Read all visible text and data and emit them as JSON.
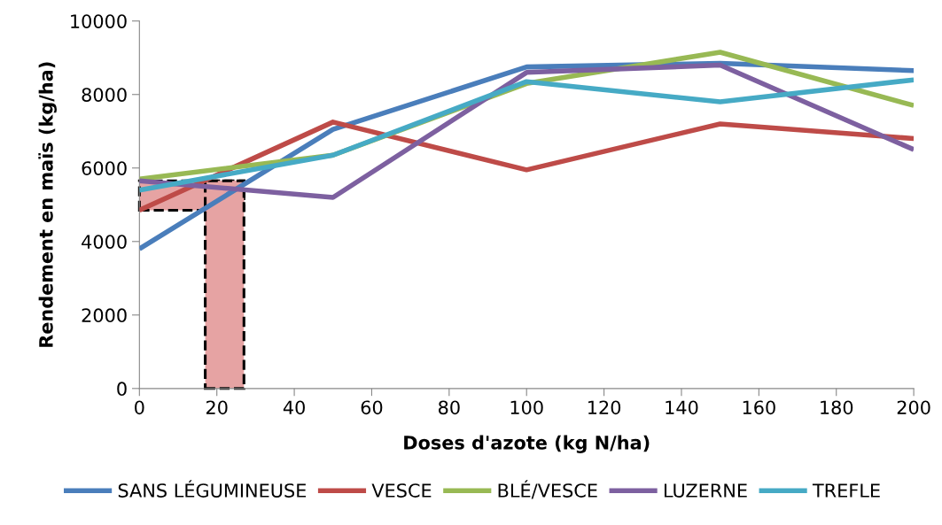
{
  "chart_data": {
    "type": "line",
    "xlabel": "Doses d'azote (kg N/ha)",
    "ylabel": "Rendement en maïs (kg/ha)",
    "x": [
      0,
      50,
      100,
      150,
      200
    ],
    "series": [
      {
        "name": "SANS LÉGUMINEUSE",
        "color": "#4a7ebb",
        "values": [
          3800,
          7050,
          8750,
          8850,
          8650
        ]
      },
      {
        "name": "VESCE",
        "color": "#be4b48",
        "values": [
          4850,
          7250,
          5950,
          7200,
          6800
        ]
      },
      {
        "name": "BLÉ/VESCE",
        "color": "#98b954",
        "values": [
          5700,
          6350,
          8300,
          9150,
          7700
        ]
      },
      {
        "name": "LUZERNE",
        "color": "#7d60a0",
        "values": [
          5650,
          5200,
          8600,
          8800,
          6500
        ]
      },
      {
        "name": "TREFLE",
        "color": "#46aac5",
        "values": [
          5400,
          6350,
          8350,
          7800,
          8400
        ]
      }
    ],
    "bands": [
      {
        "axis": "y",
        "from": 4850,
        "to": 5650,
        "color": "#e6a3a3"
      },
      {
        "axis": "x",
        "from": 17,
        "to": 27,
        "color": "#e6a3a3"
      }
    ],
    "xlim": [
      0,
      200
    ],
    "xticks": [
      0,
      20,
      40,
      60,
      80,
      100,
      120,
      140,
      160,
      180,
      200
    ],
    "ylim": [
      0,
      10000
    ],
    "yticks": [
      0,
      2000,
      4000,
      6000,
      8000,
      10000
    ],
    "grid": false,
    "legend": "bottom",
    "marker": "none",
    "line_style": "solid"
  }
}
